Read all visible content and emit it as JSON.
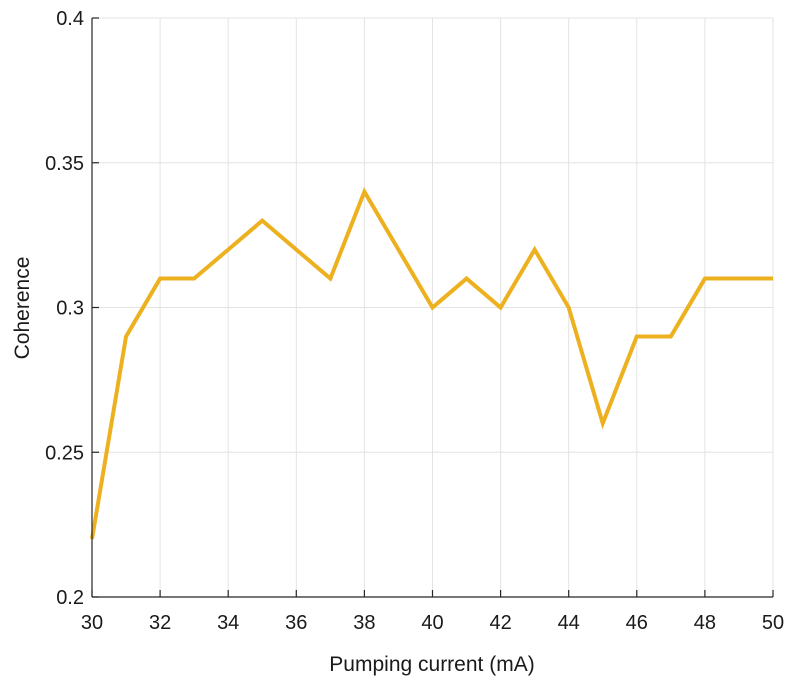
{
  "chart_data": {
    "type": "line",
    "title": "",
    "xlabel": "Pumping current (mA)",
    "ylabel": "Coherence",
    "xlim": [
      30,
      50
    ],
    "ylim": [
      0.2,
      0.4
    ],
    "xticks": [
      30,
      32,
      34,
      36,
      38,
      40,
      42,
      44,
      46,
      48,
      50
    ],
    "yticks": [
      0.2,
      0.25,
      0.3,
      0.35,
      0.4
    ],
    "ytick_labels": [
      "0.2",
      "0.25",
      "0.3",
      "0.35",
      "0.4"
    ],
    "grid": true,
    "legend": "none",
    "series": [
      {
        "color": "#EDB120",
        "x": [
          30,
          31,
          32,
          33,
          34,
          35,
          36,
          37,
          38,
          39,
          40,
          41,
          42,
          43,
          44,
          45,
          46,
          47,
          48,
          49,
          50
        ],
        "y": [
          0.22,
          0.29,
          0.31,
          0.31,
          0.32,
          0.33,
          0.32,
          0.31,
          0.34,
          0.32,
          0.3,
          0.31,
          0.3,
          0.32,
          0.3,
          0.26,
          0.29,
          0.29,
          0.31,
          0.31,
          0.31
        ]
      }
    ]
  }
}
